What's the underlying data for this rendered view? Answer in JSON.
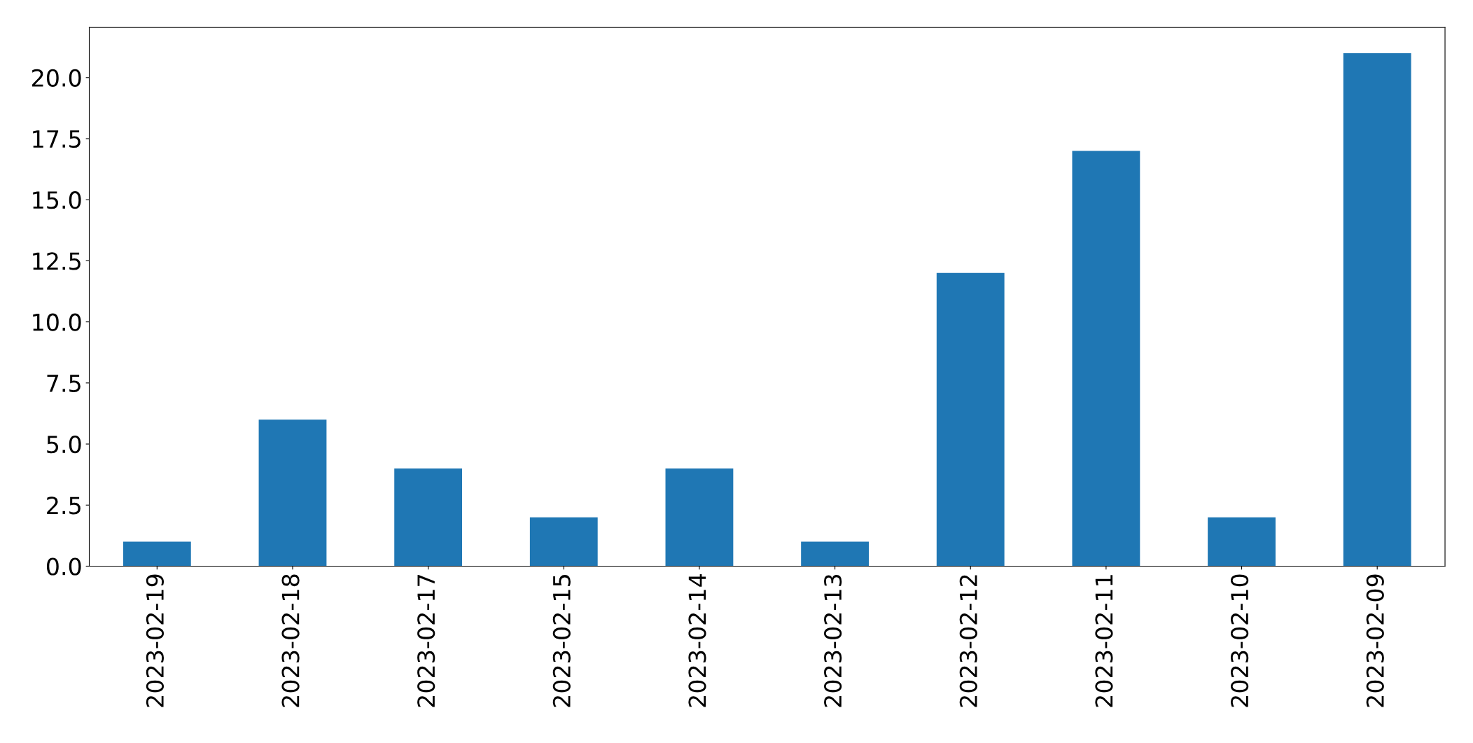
{
  "chart_data": {
    "type": "bar",
    "categories": [
      "2023-02-19",
      "2023-02-18",
      "2023-02-17",
      "2023-02-15",
      "2023-02-14",
      "2023-02-13",
      "2023-02-12",
      "2023-02-11",
      "2023-02-10",
      "2023-02-09"
    ],
    "values": [
      1,
      6,
      4,
      2,
      4,
      1,
      12,
      17,
      2,
      21
    ],
    "color": "#1f77b4",
    "ylim": [
      0,
      22.05
    ],
    "yticks": [
      {
        "value": 0,
        "label": "0.0"
      },
      {
        "value": 2.5,
        "label": "2.5"
      },
      {
        "value": 5,
        "label": "5.0"
      },
      {
        "value": 7.5,
        "label": "7.5"
      },
      {
        "value": 10,
        "label": "10.0"
      },
      {
        "value": 12.5,
        "label": "12.5"
      },
      {
        "value": 15,
        "label": "15.0"
      },
      {
        "value": 17.5,
        "label": "17.5"
      },
      {
        "value": 20,
        "label": "20.0"
      }
    ],
    "grid": false,
    "legend": false
  }
}
